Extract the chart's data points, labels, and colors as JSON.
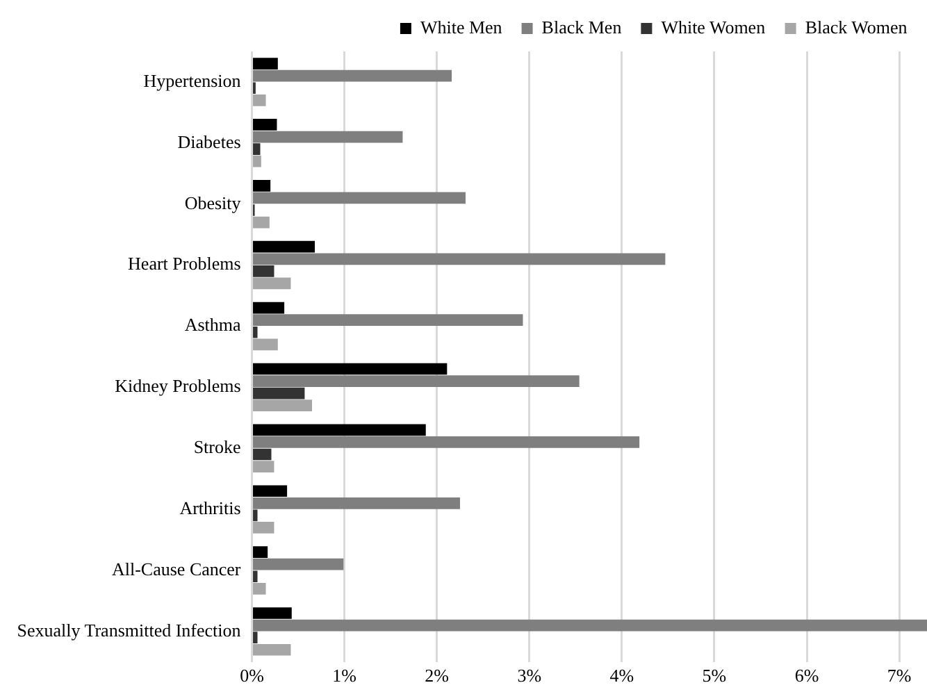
{
  "chart_data": {
    "type": "bar",
    "orientation": "horizontal",
    "categories": [
      "Hypertension",
      "Diabetes",
      "Obesity",
      "Heart Problems",
      "Asthma",
      "Kidney Problems",
      "Stroke",
      "Arthritis",
      "All-Cause Cancer",
      "Sexually Transmitted Infection"
    ],
    "series": [
      {
        "name": "White Men",
        "color": "#000000",
        "values": [
          0.28,
          0.27,
          0.2,
          0.68,
          0.35,
          2.11,
          1.88,
          0.38,
          0.17,
          0.43
        ]
      },
      {
        "name": "Black Men",
        "color": "#7f7f7f",
        "values": [
          2.16,
          1.63,
          2.31,
          4.47,
          2.93,
          3.54,
          4.19,
          2.25,
          0.99,
          7.3
        ]
      },
      {
        "name": "White Women",
        "color": "#333333",
        "values": [
          0.04,
          0.09,
          0.03,
          0.24,
          0.06,
          0.57,
          0.21,
          0.06,
          0.06,
          0.06
        ]
      },
      {
        "name": "Black Women",
        "color": "#a6a6a6",
        "values": [
          0.15,
          0.1,
          0.19,
          0.42,
          0.28,
          0.65,
          0.24,
          0.24,
          0.15,
          0.42
        ]
      }
    ],
    "xlim": [
      0,
      7.3
    ],
    "xticks": [
      {
        "value": 0,
        "label": "0%"
      },
      {
        "value": 1,
        "label": "1%"
      },
      {
        "value": 2,
        "label": "2%"
      },
      {
        "value": 3,
        "label": "3%"
      },
      {
        "value": 4,
        "label": "4%"
      },
      {
        "value": 5,
        "label": "5%"
      },
      {
        "value": 6,
        "label": "6%"
      },
      {
        "value": 7,
        "label": "7%"
      }
    ],
    "grid": "x",
    "legend": "top"
  }
}
